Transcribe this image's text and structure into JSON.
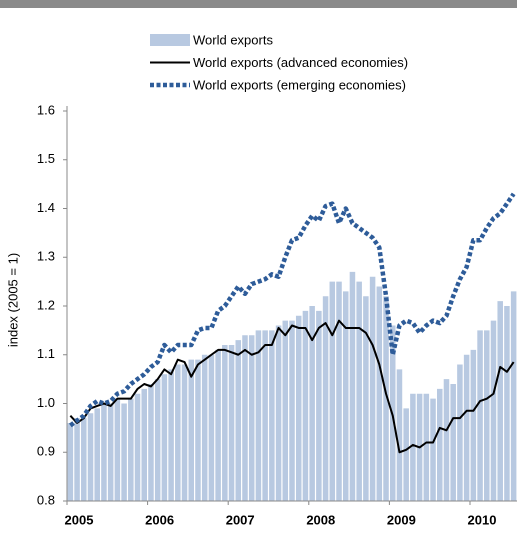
{
  "chart_data": {
    "type": "bar",
    "y_label": "index (2005 = 1)",
    "categories": [
      "2005",
      null,
      null,
      null,
      null,
      null,
      null,
      null,
      null,
      null,
      null,
      null,
      "2006",
      null,
      null,
      null,
      null,
      null,
      null,
      null,
      null,
      null,
      null,
      null,
      "2007",
      null,
      null,
      null,
      null,
      null,
      null,
      null,
      null,
      null,
      null,
      null,
      "2008",
      null,
      null,
      null,
      null,
      null,
      null,
      null,
      null,
      null,
      null,
      null,
      "2009",
      null,
      null,
      null,
      null,
      null,
      null,
      null,
      null,
      null,
      null,
      null,
      "2010",
      null,
      null,
      null,
      null,
      null,
      null
    ],
    "series": [
      {
        "name": "World exports",
        "type": "bar",
        "color": "#b8c9e1",
        "values": [
          0.96,
          0.97,
          0.97,
          0.98,
          0.99,
          1.0,
          1.0,
          1.01,
          1.0,
          1.01,
          1.02,
          1.03,
          1.04,
          1.05,
          1.06,
          1.07,
          1.08,
          1.08,
          1.09,
          1.09,
          1.1,
          1.1,
          1.11,
          1.12,
          1.12,
          1.13,
          1.14,
          1.14,
          1.15,
          1.15,
          1.15,
          1.16,
          1.17,
          1.17,
          1.18,
          1.19,
          1.2,
          1.19,
          1.22,
          1.25,
          1.25,
          1.23,
          1.27,
          1.25,
          1.22,
          1.26,
          1.24,
          1.22,
          1.16,
          1.07,
          0.99,
          1.02,
          1.02,
          1.02,
          1.01,
          1.03,
          1.05,
          1.04,
          1.08,
          1.1,
          1.11,
          1.15,
          1.15,
          1.17,
          1.21,
          1.2,
          1.23
        ]
      },
      {
        "name": "World exports (advanced economies)",
        "type": "line",
        "style": "solid",
        "color": "#000000",
        "values": [
          0.975,
          0.96,
          0.97,
          0.99,
          0.995,
          1.0,
          0.995,
          1.01,
          1.01,
          1.01,
          1.03,
          1.04,
          1.035,
          1.05,
          1.07,
          1.06,
          1.09,
          1.085,
          1.055,
          1.08,
          1.09,
          1.1,
          1.11,
          1.11,
          1.105,
          1.1,
          1.11,
          1.1,
          1.105,
          1.12,
          1.12,
          1.155,
          1.14,
          1.16,
          1.155,
          1.155,
          1.13,
          1.155,
          1.165,
          1.14,
          1.17,
          1.155,
          1.155,
          1.155,
          1.145,
          1.12,
          1.08,
          1.02,
          0.975,
          0.9,
          0.905,
          0.915,
          0.91,
          0.92,
          0.92,
          0.95,
          0.945,
          0.97,
          0.97,
          0.985,
          0.985,
          1.005,
          1.01,
          1.02,
          1.075,
          1.065,
          1.085
        ]
      },
      {
        "name": "World exports (emerging economies)",
        "type": "line",
        "style": "dotted",
        "color": "#2e5c99",
        "values": [
          0.955,
          0.965,
          0.975,
          0.995,
          1.005,
          1.0,
          1.005,
          1.02,
          1.025,
          1.04,
          1.05,
          1.06,
          1.075,
          1.085,
          1.12,
          1.105,
          1.12,
          1.12,
          1.12,
          1.15,
          1.155,
          1.155,
          1.19,
          1.2,
          1.22,
          1.24,
          1.225,
          1.245,
          1.25,
          1.255,
          1.265,
          1.26,
          1.3,
          1.335,
          1.34,
          1.365,
          1.385,
          1.375,
          1.405,
          1.41,
          1.37,
          1.4,
          1.37,
          1.36,
          1.35,
          1.34,
          1.32,
          1.22,
          1.1,
          1.16,
          1.17,
          1.165,
          1.145,
          1.16,
          1.17,
          1.165,
          1.18,
          1.22,
          1.255,
          1.28,
          1.335,
          1.335,
          1.36,
          1.38,
          1.39,
          1.41,
          1.43
        ]
      }
    ],
    "ylim": [
      0.8,
      1.6
    ],
    "yticks": [
      0.8,
      0.9,
      {
        "value": 1,
        "label": "1.0"
      },
      1.1,
      1.2,
      1.3,
      1.4,
      1.5,
      1.6
    ],
    "grid": false
  }
}
